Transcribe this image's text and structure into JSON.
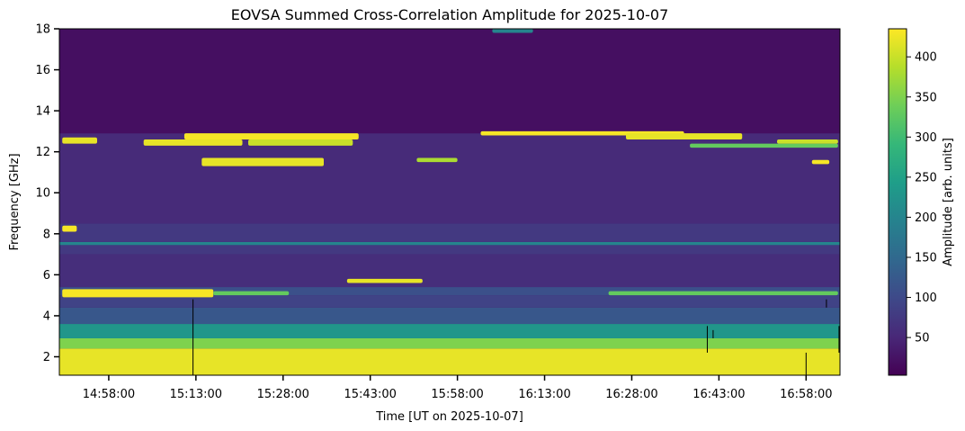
{
  "chart_data": {
    "type": "heatmap",
    "title": "EOVSA Summed Cross-Correlation Amplitude for 2025-10-07",
    "xlabel": "Time [UT on 2025-10-07]",
    "ylabel": "Frequency [GHz]",
    "colorbar_label": "Amplitude [arb. units]",
    "colormap": "viridis",
    "xlim": [
      "14:49:30",
      "17:03:50"
    ],
    "ylim": [
      1.1,
      18.0
    ],
    "clim": [
      3,
      435
    ],
    "x_ticks": [
      "14:58:00",
      "15:13:00",
      "15:28:00",
      "15:43:00",
      "15:58:00",
      "16:13:00",
      "16:28:00",
      "16:43:00",
      "16:58:00"
    ],
    "y_ticks": [
      2,
      4,
      6,
      8,
      10,
      12,
      14,
      16,
      18
    ],
    "colorbar_ticks": [
      50,
      100,
      150,
      200,
      250,
      300,
      350,
      400
    ],
    "grid": false,
    "background_level": 30,
    "band_profile": [
      {
        "f0": 1.1,
        "f1": 2.4,
        "value": 420
      },
      {
        "f0": 2.4,
        "f1": 2.9,
        "value": 350
      },
      {
        "f0": 2.9,
        "f1": 3.6,
        "value": 230
      },
      {
        "f0": 3.6,
        "f1": 4.4,
        "value": 120
      },
      {
        "f0": 4.4,
        "f1": 5.0,
        "value": 90
      },
      {
        "f0": 5.0,
        "f1": 5.4,
        "value": 110
      },
      {
        "f0": 5.4,
        "f1": 7.0,
        "value": 60
      },
      {
        "f0": 7.0,
        "f1": 7.45,
        "value": 75
      },
      {
        "f0": 7.45,
        "f1": 7.6,
        "value": 200
      },
      {
        "f0": 7.6,
        "f1": 8.5,
        "value": 75
      },
      {
        "f0": 8.5,
        "f1": 12.9,
        "value": 55
      },
      {
        "f0": 12.9,
        "f1": 18.0,
        "value": 20
      }
    ],
    "bright_regions": [
      {
        "t0": "14:50:00",
        "t1": "14:52:30",
        "f0": 8.1,
        "f1": 8.4,
        "value": 430
      },
      {
        "t0": "14:50:00",
        "t1": "15:16:00",
        "f0": 4.9,
        "f1": 5.3,
        "value": 430
      },
      {
        "t0": "15:16:00",
        "t1": "15:29:00",
        "f0": 5.0,
        "f1": 5.2,
        "value": 330
      },
      {
        "t0": "15:39:00",
        "t1": "15:52:00",
        "f0": 5.6,
        "f1": 5.8,
        "value": 420
      },
      {
        "t0": "16:24:00",
        "t1": "17:03:30",
        "f0": 5.0,
        "f1": 5.2,
        "value": 330
      },
      {
        "t0": "14:50:00",
        "t1": "14:56:00",
        "f0": 12.4,
        "f1": 12.7,
        "value": 420
      },
      {
        "t0": "15:04:00",
        "t1": "15:21:00",
        "f0": 12.3,
        "f1": 12.6,
        "value": 420
      },
      {
        "t0": "15:11:00",
        "t1": "15:41:00",
        "f0": 12.6,
        "f1": 12.9,
        "value": 430
      },
      {
        "t0": "15:22:00",
        "t1": "15:40:00",
        "f0": 12.3,
        "f1": 12.6,
        "value": 400
      },
      {
        "t0": "15:14:00",
        "t1": "15:35:00",
        "f0": 11.3,
        "f1": 11.7,
        "value": 420
      },
      {
        "t0": "15:51:00",
        "t1": "15:58:00",
        "f0": 11.5,
        "f1": 11.7,
        "value": 380
      },
      {
        "t0": "16:02:00",
        "t1": "16:37:00",
        "f0": 12.8,
        "f1": 13.0,
        "value": 430
      },
      {
        "t0": "16:27:00",
        "t1": "16:47:00",
        "f0": 12.6,
        "f1": 12.9,
        "value": 420
      },
      {
        "t0": "16:38:00",
        "t1": "17:03:30",
        "f0": 12.2,
        "f1": 12.4,
        "value": 330
      },
      {
        "t0": "16:53:00",
        "t1": "17:03:30",
        "f0": 12.4,
        "f1": 12.6,
        "value": 400
      },
      {
        "t0": "16:59:00",
        "t1": "17:02:00",
        "f0": 11.4,
        "f1": 11.6,
        "value": 430
      },
      {
        "t0": "16:04:00",
        "t1": "16:11:00",
        "f0": 17.8,
        "f1": 18.0,
        "value": 200
      }
    ],
    "dark_lines": [
      {
        "t": "15:12:30",
        "f0": 1.1,
        "f1": 4.8
      },
      {
        "t": "16:41:00",
        "f0": 2.2,
        "f1": 3.5
      },
      {
        "t": "16:42:00",
        "f0": 2.9,
        "f1": 3.3
      },
      {
        "t": "17:01:30",
        "f0": 4.4,
        "f1": 4.8
      },
      {
        "t": "16:58:00",
        "f0": 1.1,
        "f1": 2.2
      },
      {
        "t": "17:03:40",
        "f0": 2.2,
        "f1": 3.5
      }
    ]
  }
}
